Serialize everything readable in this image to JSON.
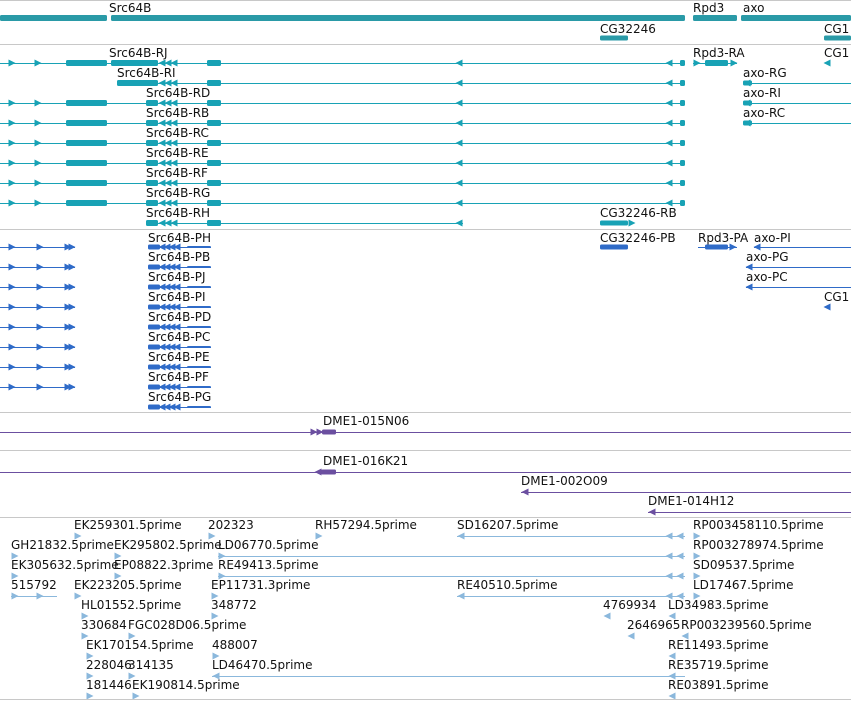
{
  "palette": {
    "gene": "#2a9aa7",
    "mrna": "#18a2b5",
    "protein": "#2f6bc8",
    "clone": "#6b4fa0",
    "est": "#8bb8dc",
    "separator": "#c8c8c8"
  },
  "genes_track": {
    "labels": [
      "Src64B",
      "Rpd3",
      "axo",
      "CG32246",
      "CG1"
    ]
  },
  "transcripts_track": {
    "labels": [
      "Src64B-RJ",
      "Src64B-RI",
      "Src64B-RD",
      "Src64B-RB",
      "Src64B-RC",
      "Src64B-RE",
      "Src64B-RF",
      "Src64B-RG",
      "Src64B-RH",
      "Rpd3-RA",
      "axo-RG",
      "axo-RI",
      "axo-RC",
      "CG32246-RB",
      "CG1"
    ]
  },
  "proteins_track": {
    "labels": [
      "Src64B-PH",
      "Src64B-PB",
      "Src64B-PJ",
      "Src64B-PI",
      "Src64B-PD",
      "Src64B-PC",
      "Src64B-PE",
      "Src64B-PF",
      "Src64B-PG",
      "CG32246-PB",
      "Rpd3-PA",
      "axo-PI",
      "axo-PG",
      "axo-PC",
      "CG1"
    ]
  },
  "clones_track": {
    "labels": [
      "DME1-015N06",
      "DME1-016K21",
      "DME1-002O09",
      "DME1-014H12"
    ]
  },
  "ests_track": {
    "labels": [
      "EK259301.5prime",
      "202323",
      "RH57294.5prime",
      "SD16207.5prime",
      "RP003458110.5prime",
      "GH21832.5prime",
      "EK295802.5prime",
      "LD06770.5prime",
      "RP003278974.5prime",
      "EK305632.5prime",
      "EP08822.3prime",
      "RE49413.5prime",
      "SD09537.5prime",
      "515792",
      "EK223205.5prime",
      "EP11731.3prime",
      "RE40510.5prime",
      "LD17467.5prime",
      "HL01552.5prime",
      "348772",
      "4769934",
      "LD34983.5prime",
      "330684",
      "FGC028D06.5prime",
      "2646965",
      "RP003239560.5prime",
      "EK170154.5prime",
      "488007",
      "RE11493.5prime",
      "228046",
      "314135",
      "LD46470.5prime",
      "RE35719.5prime",
      "181446",
      "EK190814.5prime",
      "RE03891.5prime"
    ]
  }
}
